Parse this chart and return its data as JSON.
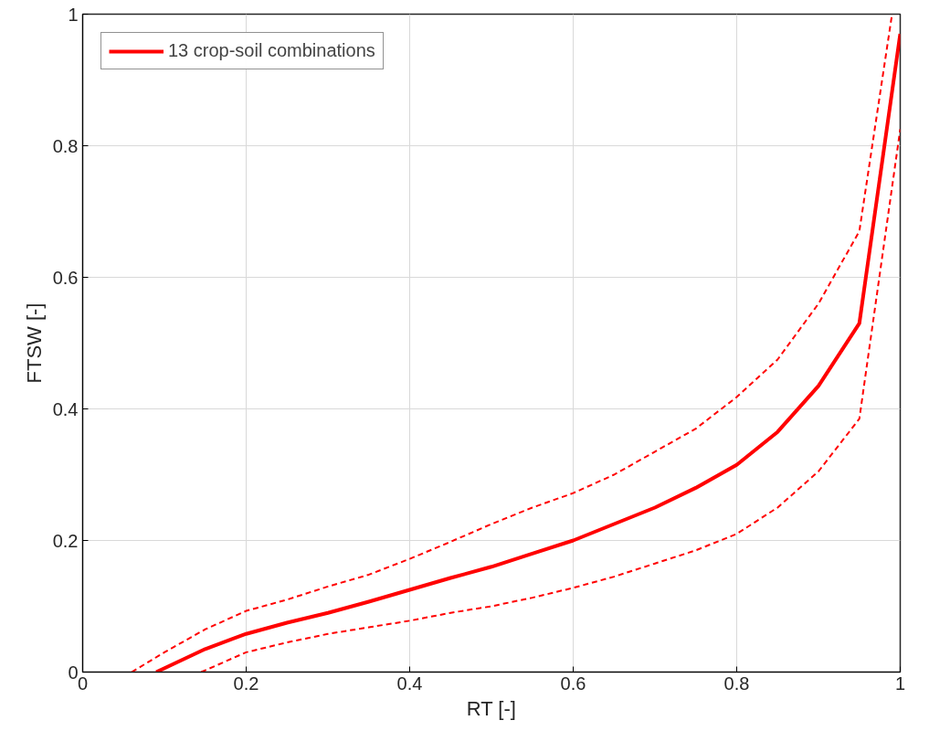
{
  "chart_data": {
    "type": "line",
    "xlabel": "RT [-]",
    "ylabel": "FTSW [-]",
    "xlim": [
      0,
      1
    ],
    "ylim": [
      0,
      1
    ],
    "xticks": [
      0,
      0.2,
      0.4,
      0.6,
      0.8,
      1
    ],
    "yticks": [
      0,
      0.2,
      0.4,
      0.6,
      0.8,
      1
    ],
    "grid": true,
    "legend": "top left",
    "marker": "none",
    "series": [
      {
        "name": "13 crop-soil combinations",
        "color": "#ff0000",
        "line_style": "solid",
        "x": [
          0.09,
          0.15,
          0.2,
          0.25,
          0.3,
          0.35,
          0.4,
          0.45,
          0.5,
          0.55,
          0.6,
          0.65,
          0.7,
          0.75,
          0.8,
          0.85,
          0.9,
          0.95,
          1.0
        ],
        "values": [
          0,
          0.035,
          0.058,
          0.075,
          0.09,
          0.107,
          0.125,
          0.143,
          0.16,
          0.18,
          0.2,
          0.225,
          0.25,
          0.28,
          0.315,
          0.365,
          0.435,
          0.53,
          0.97
        ]
      },
      {
        "color": "#ff0000",
        "line_style": "dashed",
        "x": [
          0.06,
          0.1,
          0.15,
          0.2,
          0.25,
          0.3,
          0.35,
          0.4,
          0.45,
          0.5,
          0.55,
          0.6,
          0.65,
          0.7,
          0.75,
          0.8,
          0.85,
          0.9,
          0.95,
          0.99
        ],
        "values": [
          0,
          0.03,
          0.065,
          0.093,
          0.11,
          0.13,
          0.148,
          0.172,
          0.198,
          0.225,
          0.25,
          0.272,
          0.3,
          0.335,
          0.37,
          0.418,
          0.475,
          0.56,
          0.67,
          1.0
        ]
      },
      {
        "color": "#ff0000",
        "line_style": "dashed",
        "x": [
          0.145,
          0.2,
          0.25,
          0.3,
          0.35,
          0.4,
          0.45,
          0.5,
          0.55,
          0.6,
          0.65,
          0.7,
          0.75,
          0.8,
          0.85,
          0.9,
          0.95,
          1.0
        ],
        "values": [
          0,
          0.03,
          0.045,
          0.058,
          0.068,
          0.078,
          0.09,
          0.1,
          0.113,
          0.128,
          0.145,
          0.165,
          0.185,
          0.21,
          0.25,
          0.305,
          0.385,
          0.825
        ]
      }
    ]
  }
}
